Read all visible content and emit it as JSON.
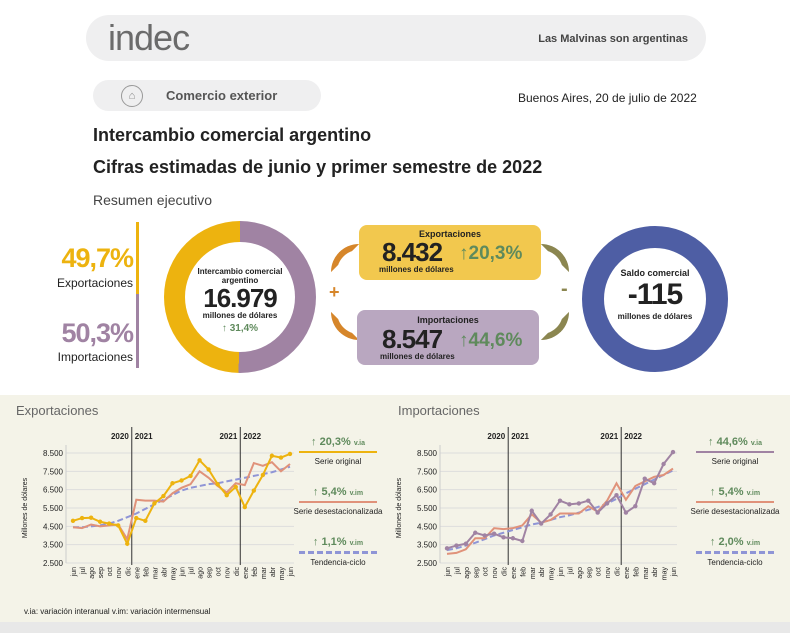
{
  "header": {
    "logo": "indec",
    "motto": "Las Malvinas son argentinas"
  },
  "section": {
    "icon": "factory-icon",
    "label": "Comercio exterior",
    "date": "Buenos Aires, 20 de julio de 2022"
  },
  "title": "Intercambio comercial argentino",
  "subtitle": "Cifras estimadas de junio y primer semestre de 2022",
  "summary_label": "Resumen ejecutivo",
  "share": {
    "exp_pct": "49,7%",
    "exp_label": "Exportaciones",
    "imp_pct": "50,3%",
    "imp_label": "Importaciones"
  },
  "intercambio": {
    "title": "Intercambio comercial argentino",
    "value": "16.979",
    "unit": "millones de dólares",
    "change": "↑ 31,4%"
  },
  "exportaciones": {
    "title": "Exportaciones",
    "value": "8.432",
    "unit": "millones de dólares",
    "change": "↑20,3%"
  },
  "importaciones": {
    "title": "Importaciones",
    "value": "8.547",
    "unit": "millones de dólares",
    "change": "↑44,6%"
  },
  "ops": {
    "plus": "+",
    "minus": "-"
  },
  "saldo": {
    "title": "Saldo comercial",
    "value": "-115",
    "unit": "millones de dólares"
  },
  "colors": {
    "exp": "#edb30f",
    "imp": "#a083a3",
    "desest": "#e0927a",
    "trend": "#8f95d6",
    "saldo": "#4e5ea4",
    "up": "#5f8a5c"
  },
  "footnote": "v.ia: variación interanual   v.im: variación intermensual",
  "chart_data": [
    {
      "type": "line",
      "title": "Exportaciones",
      "ylabel": "Millones de dólares",
      "ylim": [
        2500,
        8500
      ],
      "yticks": [
        "8.500",
        "7.500",
        "6.500",
        "5.500",
        "4.500",
        "3.500",
        "2.500"
      ],
      "years": [
        "2020",
        "2021",
        "2021",
        "2022"
      ],
      "x": [
        "jun",
        "jul",
        "ago",
        "sep",
        "oct",
        "nov",
        "dic",
        "ene",
        "feb",
        "mar",
        "abr",
        "may",
        "jun",
        "jul",
        "ago",
        "sep",
        "oct",
        "nov",
        "dic",
        "ene",
        "feb",
        "mar",
        "abr",
        "may",
        "jun"
      ],
      "series": [
        {
          "name": "Serie original",
          "change": "↑ 20,3%",
          "unit": "v.ia",
          "values": [
            4800,
            4950,
            4970,
            4750,
            4650,
            4550,
            3550,
            4950,
            4800,
            5750,
            6150,
            6850,
            7000,
            7250,
            8100,
            7600,
            6800,
            6200,
            6650,
            5550,
            6450,
            7300,
            8350,
            8250,
            8450
          ]
        },
        {
          "name": "Serie desestacionalizada",
          "change": "↑ 5,4%",
          "unit": "v.im",
          "values": [
            4450,
            4400,
            4600,
            4500,
            4550,
            4600,
            3800,
            5950,
            5900,
            5900,
            5850,
            6300,
            6600,
            6800,
            7500,
            7150,
            6700,
            6350,
            6850,
            6750,
            7950,
            7800,
            8000,
            7500,
            7900
          ]
        },
        {
          "name": "Tendencia-ciclo",
          "change": "↑ 1,1%",
          "unit": "v.im",
          "values": [
            4450,
            4450,
            4500,
            4550,
            4650,
            4800,
            5000,
            5200,
            5450,
            5700,
            5950,
            6200,
            6450,
            6600,
            6700,
            6800,
            6850,
            6950,
            7050,
            7150,
            7250,
            7350,
            7450,
            7600,
            7750
          ]
        }
      ]
    },
    {
      "type": "line",
      "title": "Importaciones",
      "ylabel": "Millones de dólares",
      "ylim": [
        2500,
        8500
      ],
      "yticks": [
        "8.500",
        "7.500",
        "6.500",
        "5.500",
        "4.500",
        "3.500",
        "2.500"
      ],
      "years": [
        "2020",
        "2021",
        "2021",
        "2022"
      ],
      "x": [
        "jun",
        "jul",
        "ago",
        "sep",
        "oct",
        "nov",
        "dic",
        "ene",
        "feb",
        "mar",
        "abr",
        "may",
        "jun",
        "jul",
        "ago",
        "sep",
        "oct",
        "nov",
        "dic",
        "ene",
        "feb",
        "mar",
        "abr",
        "may",
        "jun"
      ],
      "series": [
        {
          "name": "Serie original",
          "change": "↑ 44,6%",
          "unit": "v.ia",
          "values": [
            3300,
            3450,
            3550,
            4150,
            4000,
            4100,
            3900,
            3850,
            3700,
            5350,
            4650,
            5150,
            5900,
            5700,
            5750,
            5900,
            5250,
            5750,
            6200,
            5250,
            5600,
            7100,
            6850,
            7900,
            8550
          ]
        },
        {
          "name": "Serie desestacionalizada",
          "change": "↑ 5,4%",
          "unit": "v.im",
          "values": [
            3000,
            3050,
            3250,
            3850,
            3850,
            4400,
            4350,
            4400,
            4550,
            5150,
            4700,
            4850,
            5200,
            5200,
            5200,
            5600,
            5300,
            5900,
            6850,
            5950,
            6700,
            6950,
            7200,
            7300,
            7650
          ]
        },
        {
          "name": "Tendencia-ciclo",
          "change": "↑ 2,0%",
          "unit": "v.im",
          "values": [
            3200,
            3300,
            3450,
            3600,
            3800,
            4000,
            4150,
            4300,
            4450,
            4600,
            4700,
            4850,
            5000,
            5100,
            5250,
            5400,
            5550,
            5750,
            6000,
            6300,
            6550,
            6800,
            7050,
            7300,
            7550
          ]
        }
      ]
    }
  ]
}
